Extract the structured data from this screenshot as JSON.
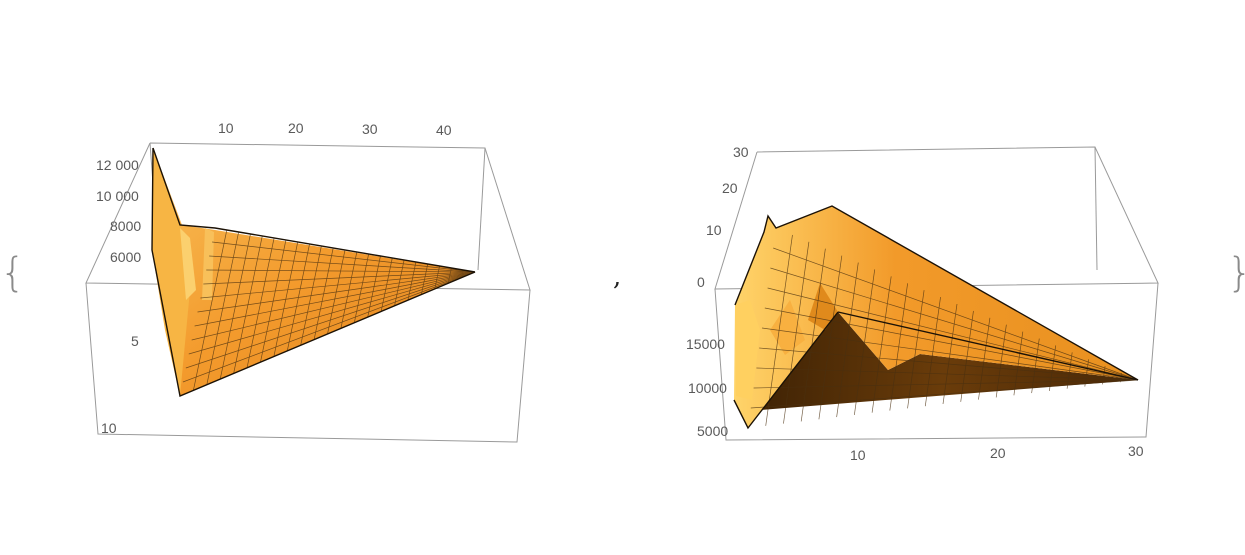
{
  "brackets": {
    "open": "{",
    "separator": ",",
    "close": "}"
  },
  "colors": {
    "surface_light": "#f8c05a",
    "surface": "#f39a2c",
    "surface_dark": "#c86a12",
    "underside": "#5a3208",
    "box": "#9a9a9a",
    "tick": "#5a5a5a"
  },
  "chart_data": [
    {
      "type": "surface3d",
      "title": "",
      "axis_top": {
        "ticks": [
          "10",
          "20",
          "30",
          "40"
        ],
        "range": [
          0,
          45
        ]
      },
      "axis_depth": {
        "ticks": [
          "5",
          "10"
        ],
        "range": [
          0,
          10
        ]
      },
      "axis_vertical": {
        "ticks": [
          "6000",
          "8000",
          "10 000",
          "12 000"
        ],
        "range": [
          5000,
          13000
        ]
      },
      "grid": true
    },
    {
      "type": "surface3d",
      "title": "",
      "axis_vertical": {
        "ticks": [
          "0",
          "10",
          "20",
          "30"
        ],
        "range": [
          0,
          30
        ]
      },
      "axis_depth": {
        "ticks": [
          "5000",
          "10000",
          "15000"
        ],
        "range": [
          5000,
          16000
        ]
      },
      "axis_bottom": {
        "ticks": [
          "10",
          "20",
          "30"
        ],
        "range": [
          1,
          31
        ]
      },
      "grid": true
    }
  ]
}
